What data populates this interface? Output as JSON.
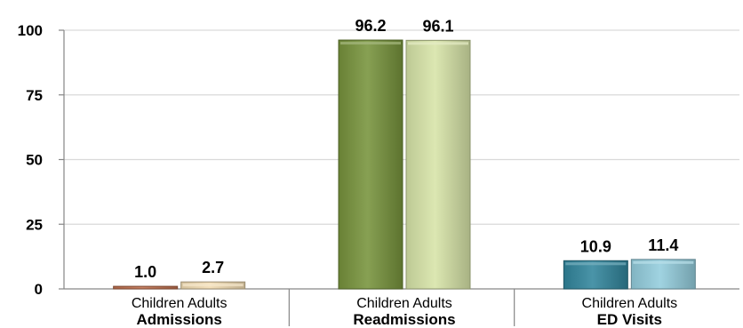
{
  "chart_data": {
    "type": "bar",
    "title": "",
    "xlabel": "",
    "ylabel": "",
    "ylim": [
      0,
      100
    ],
    "yticks": [
      0,
      25,
      50,
      75,
      100
    ],
    "grid": true,
    "subcategory_labels": [
      "Children",
      "Adults"
    ],
    "groups": [
      {
        "label": "Admissions",
        "bars": [
          {
            "sub": "Children",
            "value": 1.0,
            "label": "1.0",
            "color": "#c0714f"
          },
          {
            "sub": "Adults",
            "value": 2.7,
            "label": "2.7",
            "color": "#f2dcb2"
          }
        ]
      },
      {
        "label": "Readmissions",
        "bars": [
          {
            "sub": "Children",
            "value": 96.2,
            "label": "96.2",
            "color": "#77933c"
          },
          {
            "sub": "Adults",
            "value": 96.1,
            "label": "96.1",
            "color": "#d7e4a8"
          }
        ]
      },
      {
        "label": "ED Visits",
        "bars": [
          {
            "sub": "Children",
            "value": 10.9,
            "label": "10.9",
            "color": "#31859c"
          },
          {
            "sub": "Adults",
            "value": 11.4,
            "label": "11.4",
            "color": "#93cddd"
          }
        ]
      }
    ]
  }
}
